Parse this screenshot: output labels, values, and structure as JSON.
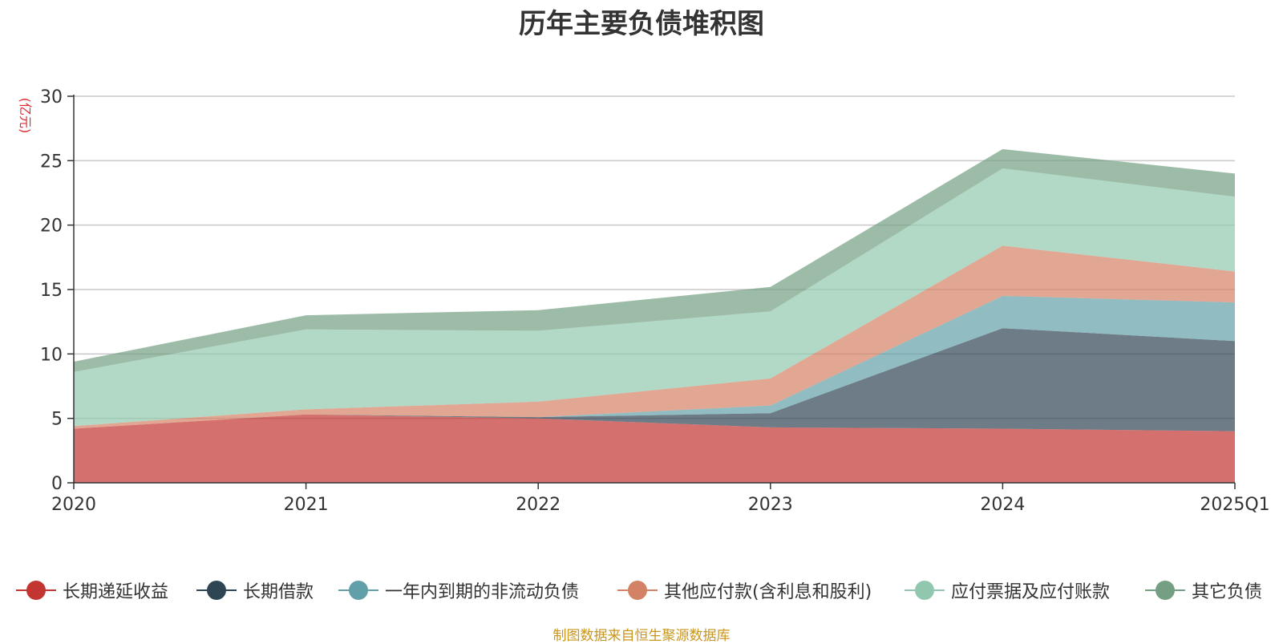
{
  "chart_data": {
    "type": "area",
    "stacked": true,
    "title": "历年主要负债堆积图",
    "ylabel": "(亿元)",
    "categories": [
      "2020",
      "2021",
      "2022",
      "2023",
      "2024",
      "2025Q1"
    ],
    "ylim": [
      0,
      30
    ],
    "yticks": [
      0,
      5,
      10,
      15,
      20,
      25,
      30
    ],
    "grid": true,
    "legend_position": "bottom",
    "series": [
      {
        "name": "长期递延收益",
        "color": "#c23531",
        "values": [
          4.2,
          5.3,
          5.0,
          4.3,
          4.2,
          4.0
        ]
      },
      {
        "name": "长期借款",
        "color": "#2f4554",
        "values": [
          0.0,
          0.0,
          0.1,
          1.1,
          7.8,
          7.0
        ]
      },
      {
        "name": "一年内到期的非流动负债",
        "color": "#61a0a8",
        "values": [
          0.0,
          0.0,
          0.0,
          0.6,
          2.5,
          3.0
        ]
      },
      {
        "name": "其他应付款(含利息和股利)",
        "color": "#d48265",
        "values": [
          0.2,
          0.4,
          1.2,
          2.1,
          3.9,
          2.4
        ]
      },
      {
        "name": "应付票据及应付账款",
        "color": "#91c7ae",
        "values": [
          4.2,
          6.2,
          5.5,
          5.2,
          6.0,
          5.8
        ]
      },
      {
        "name": "其它负债",
        "color": "#749f83",
        "values": [
          0.8,
          1.1,
          1.6,
          1.9,
          1.5,
          1.8
        ]
      }
    ]
  },
  "footer": {
    "source": "制图数据来自恒生聚源数据库"
  }
}
